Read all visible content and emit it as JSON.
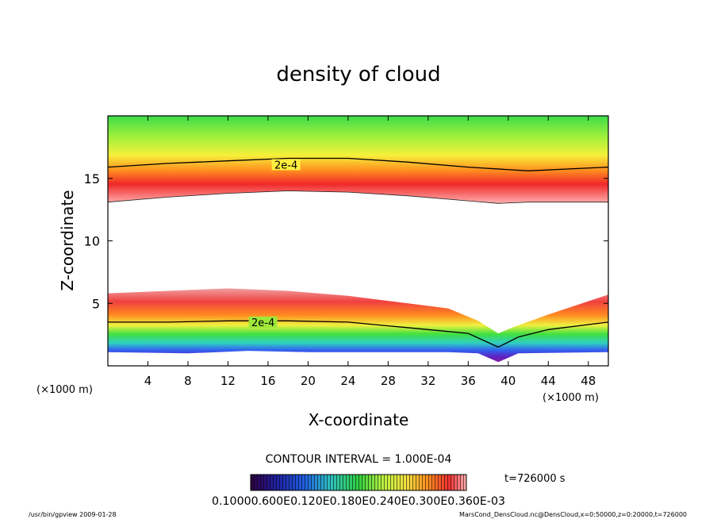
{
  "chart_data": {
    "type": "heatmap",
    "title": "density of cloud",
    "xlabel": "X-coordinate",
    "ylabel": "Z-coordinate",
    "x_unit": "(×1000 m)",
    "z_unit": "(×1000 m)",
    "xlim": [
      0,
      50
    ],
    "ylim": [
      0,
      20
    ],
    "x_ticks": [
      "4",
      "8",
      "12",
      "16",
      "20",
      "24",
      "28",
      "32",
      "36",
      "40",
      "44",
      "48"
    ],
    "y_ticks": [
      "5",
      "10",
      "15"
    ],
    "contour_labels": [
      {
        "text": "2e-4",
        "x": 17.8,
        "z": 16.1
      },
      {
        "text": "2e-4",
        "x": 15.5,
        "z": 3.5
      }
    ],
    "upper_layer": {
      "contour_2e4": [
        [
          0,
          15.9
        ],
        [
          6,
          16.2
        ],
        [
          12,
          16.4
        ],
        [
          18,
          16.6
        ],
        [
          24,
          16.6
        ],
        [
          30,
          16.3
        ],
        [
          36,
          15.9
        ],
        [
          42,
          15.6
        ],
        [
          50,
          15.9
        ]
      ],
      "lower_boundary": [
        [
          0,
          13.1
        ],
        [
          6,
          13.5
        ],
        [
          12,
          13.8
        ],
        [
          18,
          14.0
        ],
        [
          24,
          13.9
        ],
        [
          30,
          13.6
        ],
        [
          36,
          13.2
        ],
        [
          39,
          13.0
        ],
        [
          42,
          13.1
        ],
        [
          50,
          13.1
        ]
      ]
    },
    "lower_layer": {
      "top_boundary": [
        [
          0,
          5.8
        ],
        [
          6,
          6.0
        ],
        [
          12,
          6.2
        ],
        [
          18,
          6.0
        ],
        [
          24,
          5.6
        ],
        [
          30,
          5.0
        ],
        [
          34,
          4.6
        ],
        [
          37,
          3.6
        ],
        [
          39,
          2.6
        ],
        [
          40.5,
          3.1
        ],
        [
          44,
          4.1
        ],
        [
          50,
          5.7
        ]
      ],
      "contour_2e4": [
        [
          0,
          3.5
        ],
        [
          6,
          3.5
        ],
        [
          12,
          3.6
        ],
        [
          18,
          3.6
        ],
        [
          24,
          3.5
        ],
        [
          28,
          3.2
        ],
        [
          32,
          2.9
        ],
        [
          36,
          2.6
        ],
        [
          39,
          1.5
        ],
        [
          41,
          2.3
        ],
        [
          44,
          2.9
        ],
        [
          50,
          3.5
        ]
      ],
      "base": [
        [
          0,
          1.1
        ],
        [
          8,
          1.0
        ],
        [
          14,
          1.2
        ],
        [
          20,
          1.1
        ],
        [
          28,
          1.1
        ],
        [
          34,
          1.1
        ],
        [
          37,
          1.0
        ],
        [
          39,
          0.3
        ],
        [
          41,
          1.0
        ],
        [
          50,
          1.1
        ]
      ]
    },
    "contour_interval": "CONTOUR INTERVAL = 1.000E-04",
    "colorbar_labels": "0.10000.600E0.120E0.180E0.240E0.300E0.360E-03",
    "time_label": "t=726000 s"
  },
  "footer": {
    "left": "/usr/bin/gpview   2009-01-28",
    "right": "MarsCond_DensCloud.nc@DensCloud,x=0:50000,z=0:20000,t=726000"
  }
}
